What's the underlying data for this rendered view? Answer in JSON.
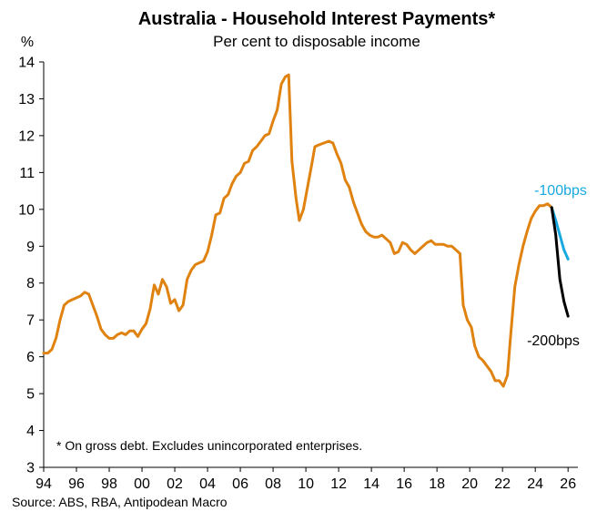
{
  "chart_data": {
    "type": "line",
    "title": "Australia - Household Interest Payments*",
    "subtitle": "Per cent to disposable income",
    "ylabel": "%",
    "xlabel": "",
    "ylim": [
      3,
      14
    ],
    "xlim": [
      1994,
      2026.6
    ],
    "y_ticks": [
      3,
      4,
      5,
      6,
      7,
      8,
      9,
      10,
      11,
      12,
      13,
      14
    ],
    "x_ticks": [
      {
        "value": 1994,
        "label": "94"
      },
      {
        "value": 1996,
        "label": "96"
      },
      {
        "value": 1998,
        "label": "98"
      },
      {
        "value": 2000,
        "label": "00"
      },
      {
        "value": 2002,
        "label": "02"
      },
      {
        "value": 2004,
        "label": "04"
      },
      {
        "value": 2006,
        "label": "06"
      },
      {
        "value": 2008,
        "label": "08"
      },
      {
        "value": 2010,
        "label": "10"
      },
      {
        "value": 2012,
        "label": "12"
      },
      {
        "value": 2014,
        "label": "14"
      },
      {
        "value": 2016,
        "label": "16"
      },
      {
        "value": 2018,
        "label": "18"
      },
      {
        "value": 2020,
        "label": "20"
      },
      {
        "value": 2022,
        "label": "22"
      },
      {
        "value": 2024,
        "label": "24"
      },
      {
        "value": 2026,
        "label": "26"
      }
    ],
    "grid": false,
    "note": "* On gross debt. Excludes unincorporated enterprises.",
    "source": "Source: ABS, RBA, Antipodean Macro",
    "series": [
      {
        "color": "#E0820F",
        "points": [
          [
            1994.0,
            6.1
          ],
          [
            1994.25,
            6.1
          ],
          [
            1994.5,
            6.2
          ],
          [
            1994.75,
            6.5
          ],
          [
            1995.0,
            7.0
          ],
          [
            1995.25,
            7.4
          ],
          [
            1995.5,
            7.5
          ],
          [
            1995.75,
            7.55
          ],
          [
            1996.0,
            7.6
          ],
          [
            1996.25,
            7.65
          ],
          [
            1996.5,
            7.75
          ],
          [
            1996.75,
            7.7
          ],
          [
            1997.0,
            7.4
          ],
          [
            1997.25,
            7.1
          ],
          [
            1997.5,
            6.75
          ],
          [
            1997.75,
            6.6
          ],
          [
            1998.0,
            6.5
          ],
          [
            1998.25,
            6.5
          ],
          [
            1998.5,
            6.6
          ],
          [
            1998.75,
            6.65
          ],
          [
            1999.0,
            6.6
          ],
          [
            1999.25,
            6.7
          ],
          [
            1999.5,
            6.7
          ],
          [
            1999.75,
            6.55
          ],
          [
            2000.0,
            6.75
          ],
          [
            2000.25,
            6.9
          ],
          [
            2000.5,
            7.3
          ],
          [
            2000.75,
            7.95
          ],
          [
            2001.0,
            7.7
          ],
          [
            2001.25,
            8.1
          ],
          [
            2001.5,
            7.9
          ],
          [
            2001.75,
            7.45
          ],
          [
            2002.0,
            7.55
          ],
          [
            2002.25,
            7.25
          ],
          [
            2002.5,
            7.4
          ],
          [
            2002.75,
            8.1
          ],
          [
            2003.0,
            8.35
          ],
          [
            2003.25,
            8.5
          ],
          [
            2003.5,
            8.55
          ],
          [
            2003.75,
            8.6
          ],
          [
            2004.0,
            8.85
          ],
          [
            2004.25,
            9.3
          ],
          [
            2004.5,
            9.85
          ],
          [
            2004.75,
            9.9
          ],
          [
            2005.0,
            10.3
          ],
          [
            2005.25,
            10.4
          ],
          [
            2005.5,
            10.7
          ],
          [
            2005.75,
            10.9
          ],
          [
            2006.0,
            11.0
          ],
          [
            2006.25,
            11.25
          ],
          [
            2006.5,
            11.3
          ],
          [
            2006.75,
            11.6
          ],
          [
            2007.0,
            11.7
          ],
          [
            2007.25,
            11.85
          ],
          [
            2007.5,
            12.0
          ],
          [
            2007.75,
            12.05
          ],
          [
            2008.0,
            12.4
          ],
          [
            2008.25,
            12.7
          ],
          [
            2008.5,
            13.4
          ],
          [
            2008.75,
            13.6
          ],
          [
            2008.95,
            13.65
          ],
          [
            2009.15,
            11.3
          ],
          [
            2009.4,
            10.3
          ],
          [
            2009.6,
            9.7
          ],
          [
            2009.85,
            10.0
          ],
          [
            2010.1,
            10.6
          ],
          [
            2010.35,
            11.2
          ],
          [
            2010.55,
            11.7
          ],
          [
            2010.8,
            11.75
          ],
          [
            2011.1,
            11.8
          ],
          [
            2011.4,
            11.85
          ],
          [
            2011.65,
            11.8
          ],
          [
            2011.9,
            11.5
          ],
          [
            2012.15,
            11.25
          ],
          [
            2012.4,
            10.8
          ],
          [
            2012.65,
            10.6
          ],
          [
            2012.9,
            10.2
          ],
          [
            2013.15,
            9.9
          ],
          [
            2013.4,
            9.6
          ],
          [
            2013.65,
            9.4
          ],
          [
            2013.9,
            9.3
          ],
          [
            2014.15,
            9.25
          ],
          [
            2014.4,
            9.25
          ],
          [
            2014.65,
            9.3
          ],
          [
            2014.9,
            9.2
          ],
          [
            2015.15,
            9.1
          ],
          [
            2015.4,
            8.8
          ],
          [
            2015.65,
            8.85
          ],
          [
            2015.9,
            9.1
          ],
          [
            2016.15,
            9.05
          ],
          [
            2016.4,
            8.9
          ],
          [
            2016.65,
            8.8
          ],
          [
            2016.9,
            8.9
          ],
          [
            2017.15,
            9.0
          ],
          [
            2017.4,
            9.1
          ],
          [
            2017.65,
            9.15
          ],
          [
            2017.9,
            9.05
          ],
          [
            2018.15,
            9.05
          ],
          [
            2018.4,
            9.05
          ],
          [
            2018.65,
            9.0
          ],
          [
            2018.9,
            9.0
          ],
          [
            2019.15,
            8.9
          ],
          [
            2019.4,
            8.8
          ],
          [
            2019.6,
            7.4
          ],
          [
            2019.85,
            7.0
          ],
          [
            2020.1,
            6.8
          ],
          [
            2020.3,
            6.3
          ],
          [
            2020.55,
            6.0
          ],
          [
            2020.8,
            5.9
          ],
          [
            2021.05,
            5.75
          ],
          [
            2021.3,
            5.6
          ],
          [
            2021.55,
            5.35
          ],
          [
            2021.8,
            5.35
          ],
          [
            2022.05,
            5.2
          ],
          [
            2022.3,
            5.5
          ],
          [
            2022.5,
            6.6
          ],
          [
            2022.75,
            7.9
          ],
          [
            2023.0,
            8.5
          ],
          [
            2023.25,
            9.0
          ],
          [
            2023.5,
            9.4
          ],
          [
            2023.75,
            9.75
          ],
          [
            2024.0,
            9.95
          ],
          [
            2024.25,
            10.1
          ],
          [
            2024.5,
            10.1
          ],
          [
            2024.75,
            10.15
          ],
          [
            2025.0,
            10.05
          ]
        ]
      },
      {
        "name": "-100bps",
        "color": "#17A9E0",
        "points": [
          [
            2025.0,
            10.05
          ],
          [
            2025.25,
            9.7
          ],
          [
            2025.5,
            9.3
          ],
          [
            2025.75,
            8.9
          ],
          [
            2026.0,
            8.65
          ]
        ]
      },
      {
        "name": "-200bps",
        "color": "#000000",
        "points": [
          [
            2025.0,
            10.05
          ],
          [
            2025.25,
            9.3
          ],
          [
            2025.5,
            8.1
          ],
          [
            2025.75,
            7.5
          ],
          [
            2026.0,
            7.1
          ]
        ]
      }
    ]
  }
}
